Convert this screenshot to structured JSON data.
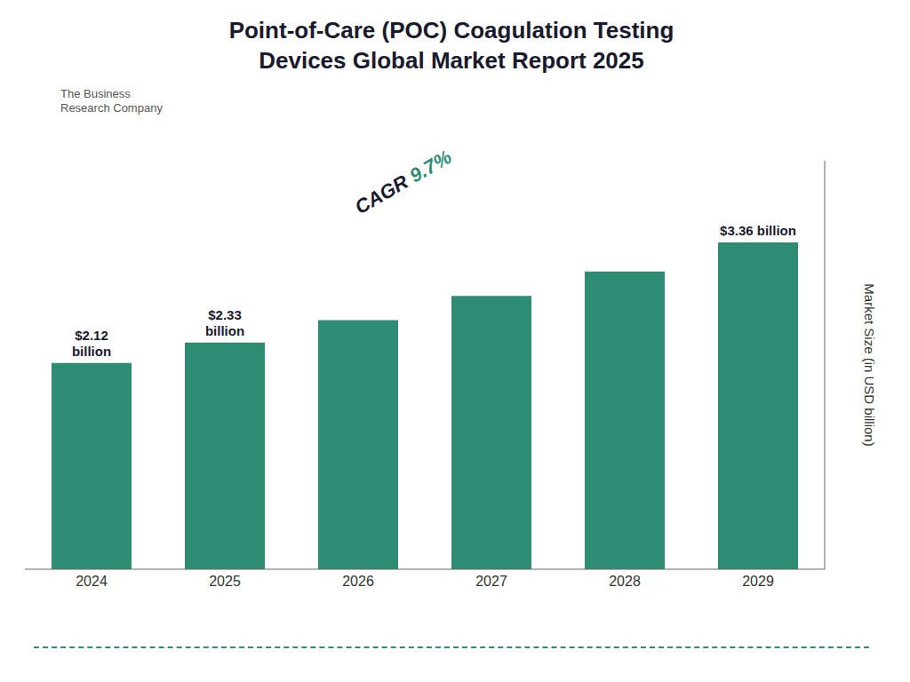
{
  "chart_data": {
    "type": "bar",
    "title": "Point-of-Care (POC) Coagulation Testing\nDevices Global Market Report 2025",
    "ylabel": "Market Size (in USD billion)",
    "categories": [
      "2024",
      "2025",
      "2026",
      "2027",
      "2028",
      "2029"
    ],
    "values": [
      2.12,
      2.33,
      2.56,
      2.81,
      3.06,
      3.36
    ],
    "value_labels": [
      "$2.12\nbillion",
      "$2.33\nbillion",
      null,
      null,
      null,
      "$3.36 billion"
    ],
    "color": "#2e8b74",
    "ylim": [
      0,
      4.2
    ],
    "grid": false,
    "tick_labels": "x",
    "annotations": [
      "CAGR 9.7%",
      "The Business\nResearch Company"
    ]
  }
}
